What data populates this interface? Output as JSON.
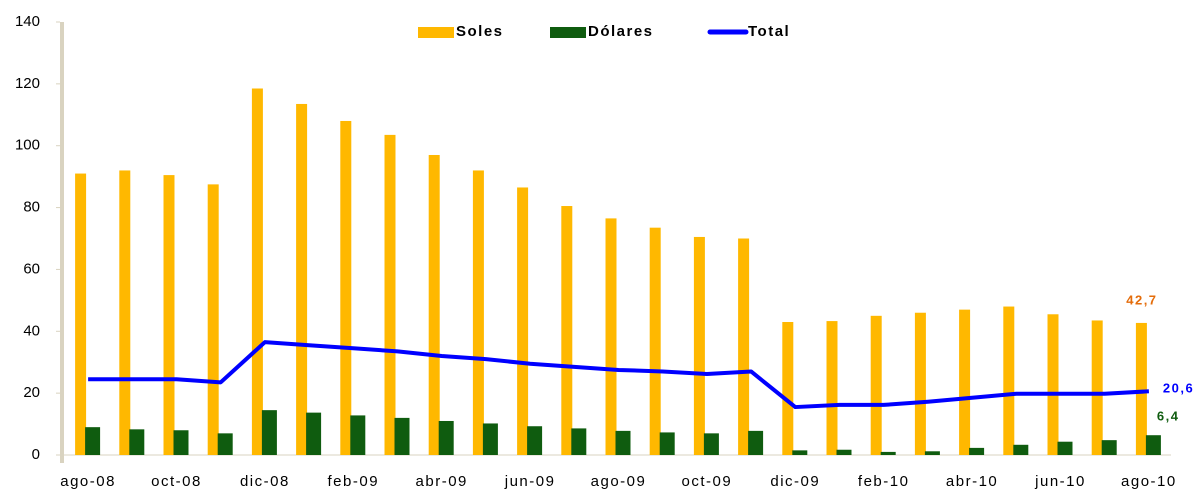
{
  "chart_data": {
    "type": "bar",
    "categories": [
      "ago-08",
      null,
      "oct-08",
      null,
      "dic-08",
      null,
      "feb-09",
      null,
      "abr-09",
      null,
      "jun-09",
      null,
      "ago-09",
      null,
      "oct-09",
      null,
      "dic-09",
      null,
      "feb-10",
      null,
      "abr-10",
      null,
      "jun-10",
      null,
      "ago-10"
    ],
    "series": [
      {
        "name": "Soles",
        "type": "bar",
        "color": "#ffb800",
        "values": [
          91,
          92,
          90.5,
          87.5,
          118.5,
          113.5,
          108,
          103.5,
          97,
          92,
          86.5,
          80.5,
          76.5,
          73.5,
          70.5,
          70,
          43,
          43.3,
          45,
          46,
          47,
          48,
          45.5,
          43.5,
          42.7
        ],
        "value_labels": [
          null,
          null,
          null,
          null,
          null,
          null,
          null,
          null,
          null,
          null,
          null,
          null,
          null,
          null,
          null,
          null,
          null,
          null,
          null,
          null,
          null,
          null,
          null,
          null,
          "42,7"
        ],
        "label_color": "#e46c0a"
      },
      {
        "name": "Dólares",
        "type": "bar",
        "color": "#0f5c0f",
        "values": [
          9,
          8.3,
          8,
          7,
          14.5,
          13.7,
          12.8,
          12,
          11,
          10.2,
          9.3,
          8.6,
          7.8,
          7.3,
          7,
          7.8,
          1.5,
          1.7,
          1,
          1.2,
          2.3,
          3.3,
          4.3,
          4.8,
          6.4
        ],
        "value_labels": [
          null,
          null,
          null,
          null,
          null,
          null,
          null,
          null,
          null,
          null,
          null,
          null,
          null,
          null,
          null,
          null,
          null,
          null,
          null,
          null,
          null,
          null,
          null,
          null,
          "6,4"
        ],
        "label_color": "#0f5c0f"
      },
      {
        "name": "Total",
        "type": "line",
        "color": "#0000ff",
        "values": [
          24.5,
          24.5,
          24.5,
          23.5,
          36.5,
          35.5,
          34.5,
          33.5,
          32,
          31,
          29.5,
          28.5,
          27.5,
          27,
          26.2,
          27,
          15.5,
          16.2,
          16.2,
          17.2,
          18.5,
          19.8,
          19.8,
          19.8,
          20.6
        ],
        "value_labels": [
          null,
          null,
          null,
          null,
          null,
          null,
          null,
          null,
          null,
          null,
          null,
          null,
          null,
          null,
          null,
          null,
          null,
          null,
          null,
          null,
          null,
          null,
          null,
          null,
          "20,6"
        ],
        "label_color": "#0000ff"
      }
    ],
    "ylim": [
      0,
      140
    ],
    "yticks": [
      0,
      20,
      40,
      60,
      80,
      100,
      120,
      140
    ],
    "grid": false,
    "legend": "top"
  }
}
